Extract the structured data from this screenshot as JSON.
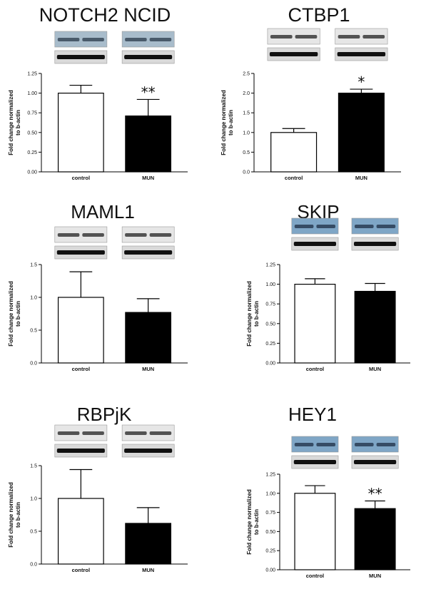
{
  "chart_data": [
    {
      "type": "bar",
      "title": "NOTCH2 NCID",
      "ylabel": [
        "Fold change normalized",
        "to b-actin"
      ],
      "categories": [
        "control",
        "MUN"
      ],
      "values": [
        1.0,
        0.71
      ],
      "errors": [
        0.1,
        0.21
      ],
      "significance": [
        "",
        "**"
      ],
      "ylim": [
        0,
        1.25
      ],
      "yticks": [
        "0.00",
        "0.25",
        "0.50",
        "0.75",
        "1.00",
        "1.25"
      ],
      "blot": "blue-gray",
      "bar_colors": [
        "#ffffff",
        "#000000"
      ],
      "grid": false
    },
    {
      "type": "bar",
      "title": "CTBP1",
      "ylabel": [
        "Fold change normalized",
        "to b-actin"
      ],
      "categories": [
        "control",
        "MUN"
      ],
      "values": [
        1.0,
        2.0
      ],
      "errors": [
        0.1,
        0.1
      ],
      "significance": [
        "",
        "*"
      ],
      "ylim": [
        0,
        2.5
      ],
      "yticks": [
        "0.0",
        "0.5",
        "1.0",
        "1.5",
        "2.0",
        "2.5"
      ],
      "blot": "gray",
      "bar_colors": [
        "#ffffff",
        "#000000"
      ],
      "grid": false
    },
    {
      "type": "bar",
      "title": "MAML1",
      "ylabel": [
        "Fold change normalized",
        "to b-actin"
      ],
      "categories": [
        "control",
        "MUN"
      ],
      "values": [
        1.0,
        0.77
      ],
      "errors": [
        0.39,
        0.21
      ],
      "significance": [
        "",
        ""
      ],
      "ylim": [
        0,
        1.5
      ],
      "yticks": [
        "0.0",
        "0.5",
        "1.0",
        "1.5"
      ],
      "blot": "gray",
      "bar_colors": [
        "#ffffff",
        "#000000"
      ],
      "grid": false
    },
    {
      "type": "bar",
      "title": "SKIP",
      "ylabel": [
        "Fold change normalized",
        "to b-actin"
      ],
      "categories": [
        "control",
        "MUN"
      ],
      "values": [
        1.0,
        0.91
      ],
      "errors": [
        0.07,
        0.1
      ],
      "significance": [
        "",
        ""
      ],
      "ylim": [
        0,
        1.25
      ],
      "yticks": [
        "0.00",
        "0.25",
        "0.50",
        "0.75",
        "1.00",
        "1.25"
      ],
      "blot": "blue",
      "bar_colors": [
        "#ffffff",
        "#000000"
      ],
      "grid": false
    },
    {
      "type": "bar",
      "title": "RBPjK",
      "ylabel": [
        "Fold change normalized",
        "to b-actin"
      ],
      "categories": [
        "control",
        "MUN"
      ],
      "values": [
        1.0,
        0.62
      ],
      "errors": [
        0.44,
        0.24
      ],
      "significance": [
        "",
        ""
      ],
      "ylim": [
        0,
        1.5
      ],
      "yticks": [
        "0.0",
        "0.5",
        "1.0",
        "1.5"
      ],
      "blot": "gray",
      "bar_colors": [
        "#ffffff",
        "#000000"
      ],
      "grid": false
    },
    {
      "type": "bar",
      "title": "HEY1",
      "ylabel": [
        "Fold change normalized",
        "to b-actin"
      ],
      "categories": [
        "control",
        "MUN"
      ],
      "values": [
        1.0,
        0.8
      ],
      "errors": [
        0.1,
        0.1
      ],
      "significance": [
        "",
        "**"
      ],
      "ylim": [
        0,
        1.25
      ],
      "yticks": [
        "0.00",
        "0.25",
        "0.50",
        "0.75",
        "1.00",
        "1.25"
      ],
      "blot": "blue",
      "bar_colors": [
        "#ffffff",
        "#000000"
      ],
      "grid": false
    }
  ]
}
